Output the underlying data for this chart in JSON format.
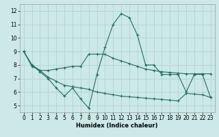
{
  "x": [
    0,
    1,
    2,
    3,
    4,
    5,
    6,
    7,
    8,
    9,
    10,
    11,
    12,
    13,
    14,
    15,
    16,
    17,
    18,
    19,
    20,
    21,
    22,
    23
  ],
  "main_curve": [
    9.0,
    8.0,
    7.5,
    7.0,
    6.3,
    5.7,
    6.3,
    5.5,
    4.8,
    7.3,
    9.3,
    11.0,
    11.8,
    11.5,
    10.2,
    8.0,
    8.0,
    7.3,
    7.3,
    7.3,
    6.0,
    7.3,
    7.3,
    5.6
  ],
  "band_high": [
    9.0,
    8.0,
    7.6,
    7.6,
    7.7,
    7.8,
    7.9,
    7.9,
    8.8,
    8.8,
    8.8,
    8.5,
    8.3,
    8.1,
    7.9,
    7.7,
    7.6,
    7.5,
    7.45,
    7.4,
    7.35,
    7.35,
    7.35,
    7.35
  ],
  "band_low": [
    9.0,
    7.9,
    7.6,
    7.1,
    6.8,
    6.5,
    6.4,
    6.3,
    6.2,
    6.0,
    5.9,
    5.8,
    5.7,
    5.65,
    5.6,
    5.55,
    5.5,
    5.45,
    5.4,
    5.35,
    5.9,
    5.85,
    5.8,
    5.6
  ],
  "color": "#1a6e63",
  "bg_color": "#cce8e8",
  "grid_color": "#aad0d0",
  "xlabel": "Humidex (Indice chaleur)",
  "xlim": [
    -0.5,
    23.5
  ],
  "ylim": [
    4.5,
    12.5
  ],
  "yticks": [
    5,
    6,
    7,
    8,
    9,
    10,
    11,
    12
  ],
  "xticks": [
    0,
    1,
    2,
    3,
    4,
    5,
    6,
    7,
    8,
    9,
    10,
    11,
    12,
    13,
    14,
    15,
    16,
    17,
    18,
    19,
    20,
    21,
    22,
    23
  ],
  "tick_fontsize": 5.5,
  "xlabel_fontsize": 6.0,
  "linewidth": 0.8,
  "markersize": 2.5,
  "markeredgewidth": 0.8
}
